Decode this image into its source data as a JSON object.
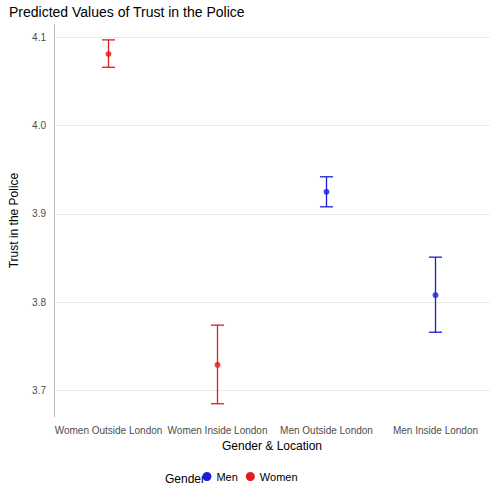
{
  "chart_data": {
    "type": "scatter",
    "title": "Predicted Values of Trust in the Police",
    "x_label": "Gender & Location",
    "y_label": "Trust in the Police",
    "categories": [
      "Women Outside London",
      "Women Inside London",
      "Men Outside London",
      "Men Inside London"
    ],
    "series": [
      {
        "name": "Men",
        "color": "#1c1cd9",
        "values": [
          null,
          null,
          3.925,
          3.808
        ],
        "error_low": [
          null,
          null,
          3.908,
          3.766
        ],
        "error_high": [
          null,
          null,
          3.942,
          3.851
        ]
      },
      {
        "name": "Women",
        "color": "#e01c1c",
        "values": [
          4.081,
          3.729,
          null,
          null
        ],
        "error_low": [
          4.066,
          3.685,
          null,
          null
        ],
        "error_high": [
          4.097,
          3.774,
          null,
          null
        ]
      }
    ],
    "ylim": [
      3.67,
      4.115
    ],
    "yticks": [
      3.7,
      3.8,
      3.9,
      {
        "value": 4,
        "label": "4.0"
      },
      4.1
    ],
    "grid": true,
    "legend": "bottom",
    "legend_title": "Gender"
  }
}
